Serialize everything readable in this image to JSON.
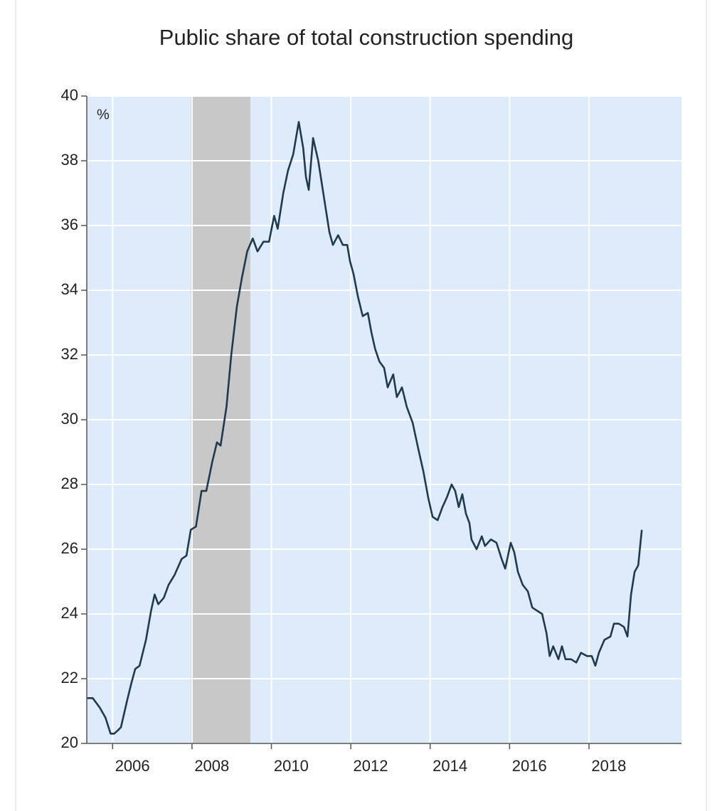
{
  "chart_data": {
    "type": "line",
    "title": "Public share of total construction spending",
    "y_unit_label": "%",
    "xlim": [
      2005.35,
      2020.33
    ],
    "ylim": [
      20,
      40
    ],
    "xticks": [
      2006,
      2008,
      2010,
      2012,
      2014,
      2016,
      2018
    ],
    "yticks": [
      20,
      22,
      24,
      26,
      28,
      30,
      32,
      34,
      36,
      38,
      40
    ],
    "grid": true,
    "recession_shade": [
      2007.97,
      2009.47
    ],
    "shade_color": "#c8c8c8",
    "background_color": "#deebfb",
    "x": [
      2005.36,
      2005.5,
      2005.68,
      2005.82,
      2005.95,
      2006.04,
      2006.13,
      2006.21,
      2006.36,
      2006.48,
      2006.57,
      2006.68,
      2006.84,
      2006.97,
      2007.06,
      2007.15,
      2007.29,
      2007.41,
      2007.56,
      2007.74,
      2007.86,
      2007.97,
      2008.1,
      2008.24,
      2008.36,
      2008.51,
      2008.63,
      2008.72,
      2008.87,
      2008.99,
      2009.13,
      2009.26,
      2009.39,
      2009.53,
      2009.65,
      2009.8,
      2009.94,
      2010.07,
      2010.16,
      2010.3,
      2010.42,
      2010.55,
      2010.69,
      2010.8,
      2010.87,
      2010.94,
      2011.05,
      2011.18,
      2011.32,
      2011.46,
      2011.55,
      2011.68,
      2011.8,
      2011.91,
      2011.98,
      2012.07,
      2012.18,
      2012.3,
      2012.43,
      2012.52,
      2012.61,
      2012.72,
      2012.84,
      2012.93,
      2013.07,
      2013.16,
      2013.29,
      2013.41,
      2013.56,
      2013.7,
      2013.83,
      2013.95,
      2014.06,
      2014.19,
      2014.31,
      2014.42,
      2014.54,
      2014.63,
      2014.72,
      2014.81,
      2014.9,
      2014.99,
      2015.04,
      2015.17,
      2015.3,
      2015.38,
      2015.53,
      2015.67,
      2015.8,
      2015.89,
      2016.03,
      2016.12,
      2016.21,
      2016.33,
      2016.46,
      2016.57,
      2016.69,
      2016.82,
      2016.93,
      2017.01,
      2017.1,
      2017.23,
      2017.32,
      2017.41,
      2017.55,
      2017.68,
      2017.8,
      2017.95,
      2018.07,
      2018.16,
      2018.25,
      2018.39,
      2018.54,
      2018.63,
      2018.75,
      2018.88,
      2018.97,
      2019.06,
      2019.15,
      2019.24,
      2019.33
    ],
    "series": [
      {
        "name": "Public share",
        "color": "#1f3a4f",
        "values": [
          21.4,
          21.4,
          21.1,
          20.8,
          20.3,
          20.3,
          20.4,
          20.5,
          21.3,
          21.9,
          22.3,
          22.4,
          23.2,
          24.1,
          24.6,
          24.3,
          24.5,
          24.9,
          25.2,
          25.7,
          25.8,
          26.6,
          26.7,
          27.8,
          27.8,
          28.7,
          29.3,
          29.2,
          30.4,
          32.0,
          33.5,
          34.4,
          35.2,
          35.6,
          35.2,
          35.5,
          35.5,
          36.3,
          35.9,
          37.0,
          37.7,
          38.2,
          39.2,
          38.4,
          37.5,
          37.1,
          38.7,
          38.0,
          36.9,
          35.8,
          35.4,
          35.7,
          35.4,
          35.4,
          34.9,
          34.5,
          33.8,
          33.2,
          33.3,
          32.7,
          32.2,
          31.8,
          31.6,
          31.0,
          31.4,
          30.7,
          31.0,
          30.4,
          29.9,
          29.1,
          28.4,
          27.6,
          27.0,
          26.9,
          27.3,
          27.6,
          28.0,
          27.8,
          27.3,
          27.7,
          27.1,
          26.8,
          26.3,
          26.0,
          26.4,
          26.1,
          26.3,
          26.2,
          25.7,
          25.4,
          26.2,
          25.9,
          25.3,
          24.9,
          24.7,
          24.2,
          24.1,
          24.0,
          23.4,
          22.7,
          23.0,
          22.6,
          23.0,
          22.6,
          22.6,
          22.5,
          22.8,
          22.7,
          22.7,
          22.4,
          22.8,
          23.2,
          23.3,
          23.7,
          23.7,
          23.6,
          23.3,
          24.6,
          25.3,
          25.5,
          26.6
        ]
      }
    ]
  }
}
